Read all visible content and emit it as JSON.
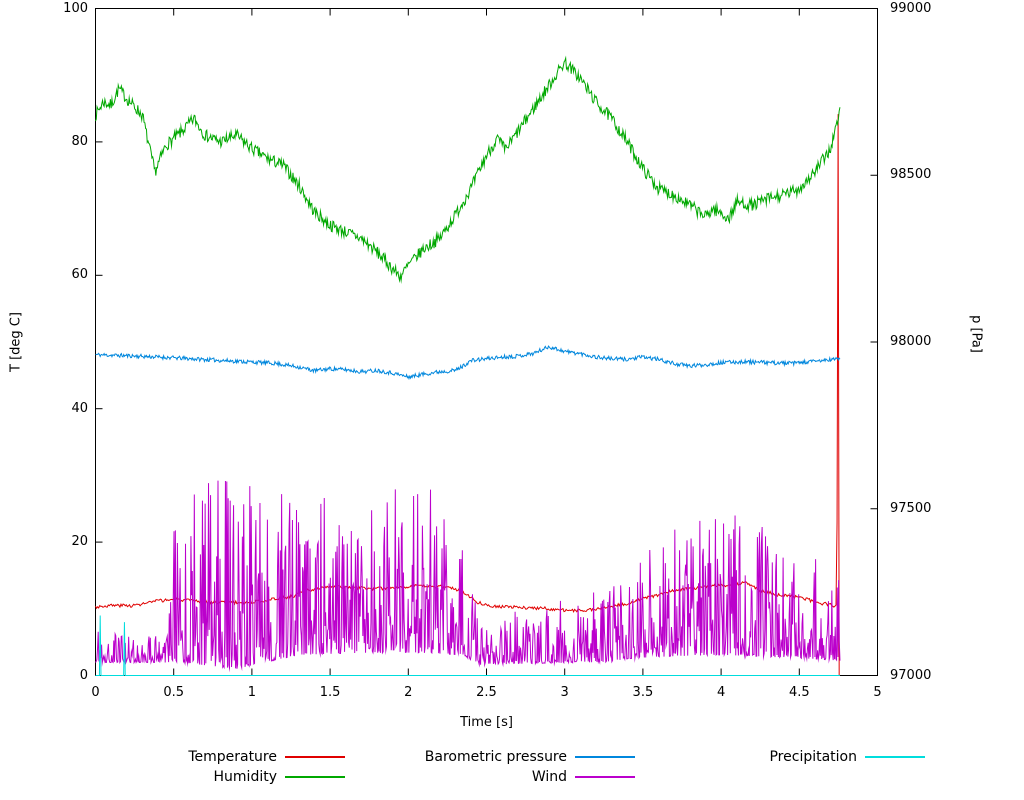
{
  "chart_data": {
    "type": "line",
    "title": "",
    "xlabel": "Time [s]",
    "ylabel_left": "T [deg C]",
    "ylabel_right": "p [Pa]",
    "xlim": [
      0,
      5
    ],
    "ylim_left": [
      0,
      100
    ],
    "ylim_right": [
      97000,
      99000
    ],
    "grid": false,
    "xticks": [
      "0",
      "0.5",
      "1",
      "1.5",
      "2",
      "2.5",
      "3",
      "3.5",
      "4",
      "4.5",
      "5"
    ],
    "yticks_left": [
      0,
      20,
      40,
      60,
      80,
      100
    ],
    "yticks_right": [
      97000,
      97500,
      98000,
      98500,
      99000
    ],
    "legend": {
      "position": "bottom",
      "columns": 3,
      "entries": [
        {
          "label": "Temperature",
          "color": "#e00000"
        },
        {
          "label": "Barometric pressure",
          "color": "#0087dd"
        },
        {
          "label": "Precipitation",
          "color": "#00dddd"
        },
        {
          "label": "Humidity",
          "color": "#00a800"
        },
        {
          "label": "Wind",
          "color": "#bb00cc"
        }
      ]
    },
    "series": [
      {
        "name": "Temperature",
        "color": "#e00000",
        "axis": "left",
        "seed": 3,
        "samples": 700,
        "noise": {
          "type": "uniform",
          "amp": 0.25
        },
        "keypoints_x": [
          0,
          0.1,
          0.25,
          0.4,
          0.5,
          0.65,
          0.8,
          0.95,
          1.1,
          1.25,
          1.35,
          1.5,
          1.65,
          1.8,
          1.95,
          2.1,
          2.25,
          2.35,
          2.45,
          2.55,
          2.7,
          2.85,
          3.0,
          3.1,
          3.25,
          3.4,
          3.55,
          3.7,
          3.85,
          3.95,
          4.05,
          4.15,
          4.25,
          4.35,
          4.5,
          4.6,
          4.7,
          4.74,
          4.75,
          4.755
        ],
        "keypoints_y": [
          10.3,
          10.5,
          10.5,
          11.2,
          11.4,
          11.1,
          11.0,
          10.9,
          11.3,
          11.8,
          12.7,
          13.3,
          13.2,
          13.0,
          13.3,
          13.4,
          13.3,
          12.6,
          10.9,
          10.4,
          10.2,
          10.1,
          9.8,
          9.7,
          10.1,
          10.8,
          11.8,
          12.8,
          13.1,
          13.6,
          13.4,
          14.0,
          12.8,
          12.1,
          11.8,
          11.0,
          10.6,
          10.4,
          100,
          0
        ]
      },
      {
        "name": "Humidity",
        "color": "#00a800",
        "axis": "left",
        "seed": 7,
        "samples": 950,
        "noise": {
          "type": "uniform",
          "amp": 0.9
        },
        "keypoints_x": [
          0,
          0.05,
          0.1,
          0.15,
          0.2,
          0.3,
          0.35,
          0.38,
          0.45,
          0.55,
          0.63,
          0.7,
          0.8,
          0.9,
          1.0,
          1.1,
          1.2,
          1.3,
          1.4,
          1.5,
          1.6,
          1.7,
          1.8,
          1.9,
          1.95,
          2.0,
          2.1,
          2.2,
          2.3,
          2.4,
          2.5,
          2.57,
          2.62,
          2.7,
          2.8,
          2.9,
          3.0,
          3.1,
          3.2,
          3.3,
          3.4,
          3.5,
          3.6,
          3.7,
          3.8,
          3.9,
          3.95,
          4.05,
          4.1,
          4.2,
          4.3,
          4.4,
          4.5,
          4.6,
          4.7,
          4.76
        ],
        "keypoints_y": [
          84,
          86,
          85.5,
          88,
          86.5,
          84,
          78.5,
          75.5,
          79.5,
          81.5,
          83.5,
          81,
          80,
          81,
          79,
          77.5,
          76.5,
          73.5,
          69.5,
          67.5,
          66.5,
          65.5,
          63.5,
          61,
          59.8,
          61.5,
          64,
          65.5,
          69,
          73,
          78,
          80.5,
          78.8,
          81.5,
          85,
          88.5,
          92,
          89.5,
          86,
          83.5,
          80,
          76,
          73,
          72,
          70.5,
          68.8,
          70,
          68.5,
          71,
          70.5,
          71.5,
          72,
          73,
          75.5,
          79,
          84.5
        ]
      },
      {
        "name": "Barometric pressure",
        "color": "#0087dd",
        "axis": "right",
        "seed": 11,
        "samples": 950,
        "noise": {
          "type": "uniform",
          "amp": 6
        },
        "keypoints_x": [
          0,
          0.2,
          0.4,
          0.6,
          0.8,
          1.0,
          1.15,
          1.3,
          1.4,
          1.5,
          1.6,
          1.7,
          1.8,
          1.9,
          2.0,
          2.1,
          2.2,
          2.3,
          2.35,
          2.4,
          2.5,
          2.6,
          2.7,
          2.8,
          2.9,
          3.0,
          3.1,
          3.2,
          3.3,
          3.4,
          3.5,
          3.6,
          3.7,
          3.8,
          3.9,
          4.0,
          4.15,
          4.3,
          4.45,
          4.6,
          4.76
        ],
        "keypoints_y": [
          97962,
          97959,
          97955,
          97950,
          97945,
          97940,
          97936,
          97925,
          97914,
          97920,
          97917,
          97911,
          97915,
          97907,
          97895,
          97904,
          97911,
          97915,
          97928,
          97944,
          97950,
          97955,
          97958,
          97966,
          97986,
          97972,
          97965,
          97955,
          97950,
          97948,
          97955,
          97948,
          97935,
          97928,
          97932,
          97938,
          97941,
          97938,
          97936,
          97942,
          97950
        ]
      },
      {
        "name": "Wind",
        "color": "#bb00cc",
        "axis": "left",
        "seed": 19,
        "samples": 1100,
        "clip_min": 0,
        "noise": {
          "type": "spiky",
          "amp_x": [
            0,
            0.45,
            0.5,
            0.9,
            1.3,
            1.7,
            2.1,
            2.35,
            2.45,
            2.7,
            3.0,
            3.3,
            3.4,
            3.6,
            4.0,
            4.3,
            4.6,
            4.76
          ],
          "amp_y": [
            1.5,
            1.5,
            7,
            10,
            7,
            8,
            8,
            7,
            2,
            2.5,
            3,
            3.5,
            5,
            6,
            7,
            6,
            5,
            4
          ]
        },
        "keypoints_x": [
          0,
          0.45,
          0.5,
          0.9,
          1.3,
          1.7,
          2.1,
          2.35,
          2.45,
          2.7,
          3.0,
          3.3,
          3.4,
          3.6,
          4.0,
          4.3,
          4.6,
          4.76
        ],
        "keypoints_y": [
          3,
          3,
          7,
          8,
          8,
          9,
          9,
          8,
          3,
          3.5,
          4,
          4.5,
          6,
          7,
          8,
          7,
          6,
          5
        ]
      },
      {
        "name": "Precipitation",
        "color": "#00dddd",
        "axis": "left",
        "seed": 23,
        "samples": 0,
        "noise": null,
        "keypoints_x": [
          0,
          0.025,
          0.03,
          0.035,
          0.18,
          0.185,
          0.19,
          4.76
        ],
        "keypoints_y": [
          0,
          0,
          9,
          0,
          0,
          8,
          0,
          0
        ]
      }
    ]
  }
}
